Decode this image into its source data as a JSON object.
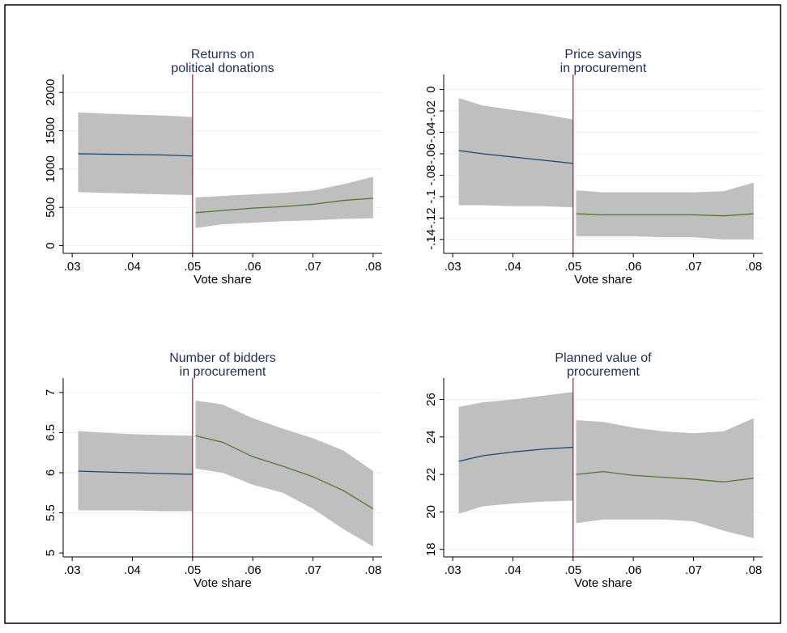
{
  "chart_data": [
    {
      "type": "line",
      "title": [
        "Returns on",
        "political donations"
      ],
      "xlabel": "Vote share",
      "xlim": [
        0.0285,
        0.0815
      ],
      "ylim": [
        -100,
        2150
      ],
      "xticks": [
        {
          "value": 0.03,
          "label": ".03"
        },
        {
          "value": 0.04,
          "label": ".04"
        },
        {
          "value": 0.05,
          "label": ".05"
        },
        {
          "value": 0.06,
          "label": ".06"
        },
        {
          "value": 0.07,
          "label": ".07"
        },
        {
          "value": 0.08,
          "label": ".08"
        }
      ],
      "yticks": [
        0,
        500,
        1000,
        1500,
        2000
      ],
      "grid": true,
      "cutoff": 0.05,
      "cutoff_color": "#a0194a",
      "band_color": "#bfbfbf",
      "series": [
        {
          "color": "#1a476f",
          "x": [
            0.031,
            0.035,
            0.04,
            0.045,
            0.05
          ],
          "values": [
            1200,
            1195,
            1190,
            1185,
            1170
          ],
          "lower": [
            700,
            690,
            680,
            670,
            660
          ],
          "upper": [
            1740,
            1725,
            1710,
            1700,
            1680
          ]
        },
        {
          "color": "#55752f",
          "x": [
            0.0505,
            0.055,
            0.06,
            0.065,
            0.07,
            0.075,
            0.08
          ],
          "values": [
            430,
            460,
            490,
            510,
            540,
            590,
            620
          ],
          "lower": [
            230,
            280,
            300,
            320,
            330,
            350,
            360
          ],
          "upper": [
            630,
            650,
            670,
            690,
            720,
            800,
            900
          ]
        }
      ]
    },
    {
      "type": "line",
      "title": [
        "Price savings",
        "in procurement"
      ],
      "xlabel": "Vote share",
      "xlim": [
        0.0285,
        0.0815
      ],
      "ylim": [
        -0.153,
        0.008
      ],
      "xticks": [
        {
          "value": 0.03,
          "label": ".03"
        },
        {
          "value": 0.04,
          "label": ".04"
        },
        {
          "value": 0.05,
          "label": ".05"
        },
        {
          "value": 0.06,
          "label": ".06"
        },
        {
          "value": 0.07,
          "label": ".07"
        },
        {
          "value": 0.08,
          "label": ".08"
        }
      ],
      "yticks": [
        {
          "value": -0.14,
          "label": "-.14"
        },
        {
          "value": -0.12,
          "label": "-.12"
        },
        {
          "value": -0.1,
          "label": "-.1"
        },
        {
          "value": -0.08,
          "label": "-.08"
        },
        {
          "value": -0.06,
          "label": "-.06"
        },
        {
          "value": -0.04,
          "label": "-.04"
        },
        {
          "value": -0.02,
          "label": "-.02"
        },
        0
      ],
      "grid": true,
      "cutoff": 0.05,
      "cutoff_color": "#a0194a",
      "band_color": "#bfbfbf",
      "series": [
        {
          "color": "#1a476f",
          "x": [
            0.031,
            0.035,
            0.04,
            0.045,
            0.05
          ],
          "values": [
            -0.057,
            -0.06,
            -0.063,
            -0.066,
            -0.069
          ],
          "lower": [
            -0.108,
            -0.108,
            -0.109,
            -0.109,
            -0.11
          ],
          "upper": [
            -0.008,
            -0.015,
            -0.019,
            -0.023,
            -0.028
          ]
        },
        {
          "color": "#55752f",
          "x": [
            0.0505,
            0.055,
            0.06,
            0.065,
            0.07,
            0.075,
            0.08
          ],
          "values": [
            -0.116,
            -0.117,
            -0.117,
            -0.117,
            -0.117,
            -0.118,
            -0.116
          ],
          "lower": [
            -0.137,
            -0.137,
            -0.137,
            -0.138,
            -0.138,
            -0.14,
            -0.14
          ],
          "upper": [
            -0.094,
            -0.096,
            -0.096,
            -0.096,
            -0.096,
            -0.095,
            -0.087
          ]
        }
      ]
    },
    {
      "type": "line",
      "title": [
        "Number of bidders",
        "in procurement"
      ],
      "xlabel": "Vote share",
      "xlim": [
        0.0285,
        0.0815
      ],
      "ylim": [
        4.95,
        7.1
      ],
      "xticks": [
        {
          "value": 0.03,
          "label": ".03"
        },
        {
          "value": 0.04,
          "label": ".04"
        },
        {
          "value": 0.05,
          "label": ".05"
        },
        {
          "value": 0.06,
          "label": ".06"
        },
        {
          "value": 0.07,
          "label": ".07"
        },
        {
          "value": 0.08,
          "label": ".08"
        }
      ],
      "yticks": [
        5,
        5.5,
        6,
        6.5,
        7
      ],
      "grid": true,
      "cutoff": 0.05,
      "cutoff_color": "#a0194a",
      "band_color": "#bfbfbf",
      "series": [
        {
          "color": "#1a476f",
          "x": [
            0.031,
            0.035,
            0.04,
            0.045,
            0.05
          ],
          "values": [
            6.02,
            6.01,
            6.0,
            5.99,
            5.98
          ],
          "lower": [
            5.53,
            5.53,
            5.53,
            5.52,
            5.52
          ],
          "upper": [
            6.52,
            6.5,
            6.48,
            6.47,
            6.46
          ]
        },
        {
          "color": "#55752f",
          "x": [
            0.0505,
            0.055,
            0.06,
            0.065,
            0.07,
            0.075,
            0.08
          ],
          "values": [
            6.46,
            6.38,
            6.2,
            6.08,
            5.95,
            5.78,
            5.55
          ],
          "lower": [
            6.05,
            6.0,
            5.85,
            5.75,
            5.55,
            5.3,
            5.08
          ],
          "upper": [
            6.9,
            6.85,
            6.68,
            6.55,
            6.43,
            6.28,
            6.02
          ]
        }
      ]
    },
    {
      "type": "line",
      "title": [
        "Planned value of",
        "procurement"
      ],
      "xlabel": "Vote share",
      "xlim": [
        0.0285,
        0.0815
      ],
      "ylim": [
        17.6,
        26.8
      ],
      "xticks": [
        {
          "value": 0.03,
          "label": ".03"
        },
        {
          "value": 0.04,
          "label": ".04"
        },
        {
          "value": 0.05,
          "label": ".05"
        },
        {
          "value": 0.06,
          "label": ".06"
        },
        {
          "value": 0.07,
          "label": ".07"
        },
        {
          "value": 0.08,
          "label": ".08"
        }
      ],
      "yticks": [
        18,
        20,
        22,
        24,
        26
      ],
      "grid": true,
      "cutoff": 0.05,
      "cutoff_color": "#a0194a",
      "band_color": "#bfbfbf",
      "series": [
        {
          "color": "#1a476f",
          "x": [
            0.031,
            0.035,
            0.04,
            0.045,
            0.05
          ],
          "values": [
            22.7,
            23.0,
            23.2,
            23.35,
            23.45
          ],
          "lower": [
            19.9,
            20.3,
            20.45,
            20.55,
            20.6
          ],
          "upper": [
            25.6,
            25.85,
            26.0,
            26.2,
            26.4
          ]
        },
        {
          "color": "#55752f",
          "x": [
            0.0505,
            0.055,
            0.06,
            0.065,
            0.07,
            0.075,
            0.08
          ],
          "values": [
            22.0,
            22.15,
            21.95,
            21.85,
            21.75,
            21.6,
            21.8
          ],
          "lower": [
            19.4,
            19.6,
            19.6,
            19.6,
            19.5,
            19.0,
            18.6
          ],
          "upper": [
            24.9,
            24.8,
            24.5,
            24.3,
            24.2,
            24.3,
            25.0
          ]
        }
      ]
    }
  ]
}
